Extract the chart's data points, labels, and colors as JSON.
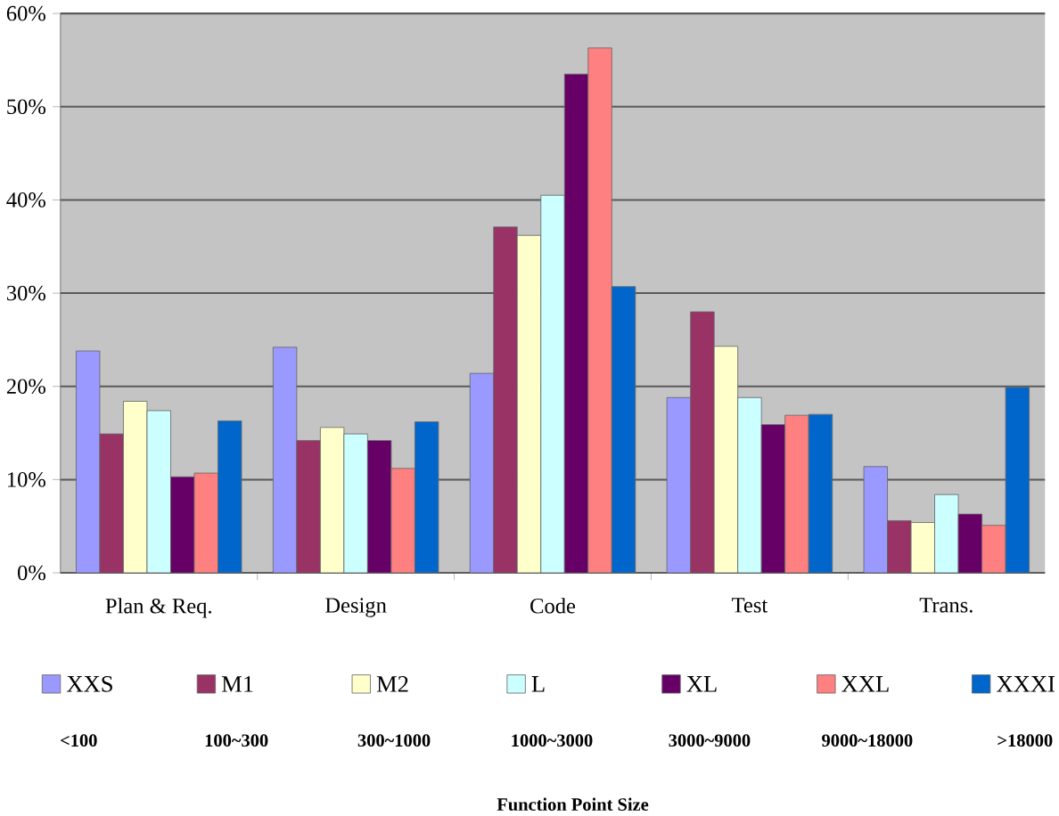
{
  "chart_data": {
    "type": "bar",
    "categories": [
      "Plan & Req.",
      "Design",
      "Code",
      "Test",
      "Trans."
    ],
    "series": [
      {
        "name": "XXS",
        "color": "#9999ff",
        "values": [
          23.8,
          24.2,
          21.4,
          18.8,
          11.4
        ]
      },
      {
        "name": "M1",
        "color": "#993366",
        "values": [
          14.9,
          14.2,
          37.1,
          28.0,
          5.6
        ]
      },
      {
        "name": "M2",
        "color": "#ffffcc",
        "values": [
          18.4,
          15.6,
          36.2,
          24.3,
          5.4
        ]
      },
      {
        "name": "L",
        "color": "#ccffff",
        "values": [
          17.4,
          14.9,
          40.5,
          18.8,
          8.4
        ]
      },
      {
        "name": "XL",
        "color": "#660066",
        "values": [
          10.3,
          14.2,
          53.5,
          15.9,
          6.3
        ]
      },
      {
        "name": "XXL",
        "color": "#ff8080",
        "values": [
          10.7,
          11.2,
          56.3,
          16.9,
          5.1
        ]
      },
      {
        "name": "XXXI",
        "color": "#0066cc",
        "values": [
          16.3,
          16.2,
          30.7,
          17.0,
          19.9
        ]
      }
    ],
    "annotations": [
      "<100",
      "100~300",
      "300~1000",
      "1000~3000",
      "3000~9000",
      "9000~18000",
      ">18000",
      "Function Point Size"
    ],
    "ylim": [
      0,
      60
    ],
    "yticks": [
      {
        "value": 0,
        "label": "0%"
      },
      {
        "value": 10,
        "label": "10%"
      },
      {
        "value": 20,
        "label": "20%"
      },
      {
        "value": 30,
        "label": "30%"
      },
      {
        "value": 40,
        "label": "40%"
      },
      {
        "value": 50,
        "label": "50%"
      },
      {
        "value": 60,
        "label": "60%"
      }
    ],
    "grid": "y",
    "legend": "bottom"
  }
}
